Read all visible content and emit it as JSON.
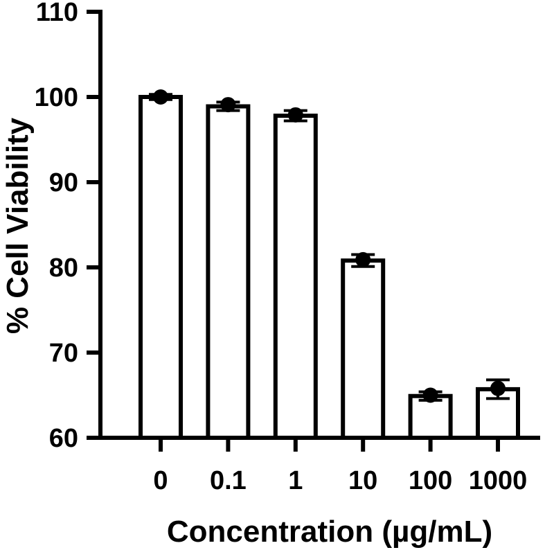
{
  "chart_data": {
    "type": "bar",
    "title": "",
    "xlabel": "Concentration (µg/mL)",
    "ylabel": "% Cell Viability",
    "categories": [
      "0",
      "0.1",
      "1",
      "10",
      "100",
      "1000"
    ],
    "values": [
      100,
      98.9,
      97.8,
      80.8,
      64.9,
      65.7
    ],
    "error": [
      0.3,
      0.5,
      0.6,
      0.7,
      0.5,
      1.1
    ],
    "points": [
      100,
      99.1,
      97.9,
      80.9,
      65.0,
      65.8
    ],
    "ylim": [
      60,
      110
    ],
    "yticks": [
      60,
      70,
      80,
      90,
      100,
      110
    ],
    "grid": false,
    "legend": "none",
    "colors": {
      "bar_fill": "#ffffff",
      "stroke": "#000000",
      "point": "#000000"
    }
  }
}
